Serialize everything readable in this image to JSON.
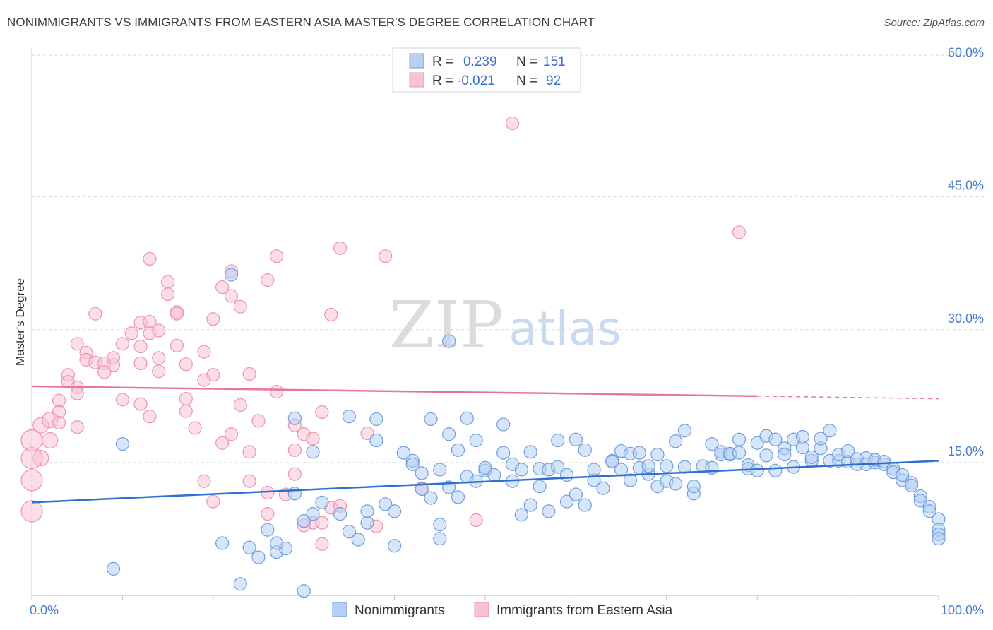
{
  "title": "NONIMMIGRANTS VS IMMIGRANTS FROM EASTERN ASIA MASTER'S DEGREE CORRELATION CHART",
  "source": "Source: ZipAtlas.com",
  "watermark": {
    "zip": "ZIP",
    "atlas": "atlas"
  },
  "colors": {
    "blue_fill": "#b7cff2",
    "blue_stroke": "#6f9ee0",
    "blue_line": "#2f6fd0",
    "pink_fill": "#f7c3d3",
    "pink_stroke": "#ee93ae",
    "pink_line": "#e8769b",
    "grid": "#d9d9d9",
    "axis_text": "#4a7bd0"
  },
  "chart_data": {
    "type": "scatter",
    "title": "NONIMMIGRANTS VS IMMIGRANTS FROM EASTERN ASIA MASTER'S DEGREE CORRELATION CHART",
    "xlabel": "",
    "ylabel": "Master's Degree",
    "xlim": [
      0,
      100
    ],
    "ylim": [
      0,
      61
    ],
    "x_tick_labels": [
      "0.0%",
      "100.0%"
    ],
    "y_ticks": [
      15,
      30,
      45,
      60
    ],
    "y_tick_labels": [
      "15.0%",
      "30.0%",
      "45.0%",
      "60.0%"
    ],
    "grid": "horizontal dashed",
    "legend_top": [
      {
        "r_label": "R =",
        "r_value": "0.239",
        "n_label": "N =",
        "n_value": "151"
      },
      {
        "r_label": "R =",
        "r_value": "-0.021",
        "n_label": "N =",
        "n_value": "92"
      }
    ],
    "legend_bottom": [
      "Nonimmigrants",
      "Immigrants from Eastern Asia"
    ],
    "series": [
      {
        "name": "Nonimmigrants",
        "trend": {
          "x0": 0,
          "y0": 10.5,
          "x1": 100,
          "y1": 15.2
        },
        "points": [
          [
            22,
            36.2
          ],
          [
            46,
            28.7
          ],
          [
            10,
            17.1
          ],
          [
            9,
            3
          ],
          [
            23,
            1.3
          ],
          [
            30,
            0.5
          ],
          [
            21,
            5.9
          ],
          [
            25,
            4.3
          ],
          [
            27,
            4.9
          ],
          [
            28,
            5.3
          ],
          [
            24,
            5.4
          ],
          [
            26,
            7.4
          ],
          [
            27,
            5.9
          ],
          [
            29,
            11.5
          ],
          [
            29,
            20
          ],
          [
            31,
            16.2
          ],
          [
            31,
            9.2
          ],
          [
            30,
            8.4
          ],
          [
            32,
            10.5
          ],
          [
            34,
            9.2
          ],
          [
            35,
            7.2
          ],
          [
            35,
            20.2
          ],
          [
            36,
            6.3
          ],
          [
            37,
            8.2
          ],
          [
            37,
            9.5
          ],
          [
            38,
            17.5
          ],
          [
            38,
            19.9
          ],
          [
            39,
            10.3
          ],
          [
            40,
            9.5
          ],
          [
            40,
            5.6
          ],
          [
            41,
            16.1
          ],
          [
            42,
            15.2
          ],
          [
            42,
            14.8
          ],
          [
            43,
            13.8
          ],
          [
            43,
            12
          ],
          [
            44,
            11
          ],
          [
            44,
            19.9
          ],
          [
            45,
            8
          ],
          [
            45,
            6.4
          ],
          [
            45,
            14.2
          ],
          [
            46,
            12.2
          ],
          [
            46,
            18.2
          ],
          [
            47,
            11.1
          ],
          [
            47,
            16.4
          ],
          [
            48,
            13.4
          ],
          [
            48,
            20
          ],
          [
            49,
            17.5
          ],
          [
            49,
            12.9
          ],
          [
            50,
            14.1
          ],
          [
            50,
            14.4
          ],
          [
            51,
            13.6
          ],
          [
            52,
            16.1
          ],
          [
            52,
            19.3
          ],
          [
            53,
            14.8
          ],
          [
            53,
            12.9
          ],
          [
            54,
            14.2
          ],
          [
            54,
            9.1
          ],
          [
            55,
            10.2
          ],
          [
            55,
            16.2
          ],
          [
            56,
            14.3
          ],
          [
            56,
            12.3
          ],
          [
            57,
            9.5
          ],
          [
            57,
            14.2
          ],
          [
            58,
            17.5
          ],
          [
            58,
            14.5
          ],
          [
            59,
            10.6
          ],
          [
            59,
            13.6
          ],
          [
            60,
            17.6
          ],
          [
            60,
            11.4
          ],
          [
            61,
            16.4
          ],
          [
            61,
            10.2
          ],
          [
            62,
            13
          ],
          [
            62,
            14.2
          ],
          [
            63,
            12.1
          ],
          [
            64,
            15.2
          ],
          [
            64,
            15.1
          ],
          [
            65,
            14.2
          ],
          [
            65,
            16.3
          ],
          [
            66,
            13
          ],
          [
            66,
            16
          ],
          [
            67,
            16.1
          ],
          [
            67,
            14.4
          ],
          [
            68,
            13.7
          ],
          [
            68,
            14.6
          ],
          [
            69,
            12.3
          ],
          [
            69,
            15.9
          ],
          [
            70,
            12.9
          ],
          [
            70,
            14.6
          ],
          [
            71,
            12.6
          ],
          [
            71,
            17.4
          ],
          [
            72,
            14.5
          ],
          [
            72,
            18.6
          ],
          [
            73,
            11.5
          ],
          [
            73,
            12.3
          ],
          [
            74,
            14.6
          ],
          [
            75,
            17.1
          ],
          [
            75,
            14.4
          ],
          [
            76,
            15.9
          ],
          [
            76,
            16.2
          ],
          [
            77,
            15.9
          ],
          [
            77,
            16
          ],
          [
            78,
            16.1
          ],
          [
            78,
            17.6
          ],
          [
            79,
            14.7
          ],
          [
            79,
            14.3
          ],
          [
            80,
            14.1
          ],
          [
            80,
            17.2
          ],
          [
            81,
            18
          ],
          [
            81,
            15.8
          ],
          [
            82,
            14.1
          ],
          [
            82,
            17.6
          ],
          [
            83,
            16.6
          ],
          [
            83,
            15.9
          ],
          [
            84,
            14.5
          ],
          [
            84,
            17.6
          ],
          [
            85,
            17.9
          ],
          [
            85,
            16.7
          ],
          [
            86,
            15.2
          ],
          [
            86,
            15.6
          ],
          [
            87,
            16.6
          ],
          [
            87,
            17.7
          ],
          [
            88,
            15.2
          ],
          [
            88,
            18.6
          ],
          [
            89,
            15.2
          ],
          [
            89,
            15.9
          ],
          [
            90,
            15.1
          ],
          [
            90,
            16.3
          ],
          [
            91,
            14.8
          ],
          [
            91,
            15.4
          ],
          [
            92,
            15.5
          ],
          [
            92,
            14.8
          ],
          [
            93,
            15
          ],
          [
            93,
            15.3
          ],
          [
            94,
            14.8
          ],
          [
            94,
            15.1
          ],
          [
            95,
            14.3
          ],
          [
            95,
            13.9
          ],
          [
            96,
            13
          ],
          [
            96,
            13.6
          ],
          [
            97,
            12.7
          ],
          [
            97,
            12.4
          ],
          [
            98,
            11.2
          ],
          [
            98,
            10.7
          ],
          [
            99,
            10
          ],
          [
            99,
            9.5
          ],
          [
            100,
            8.6
          ],
          [
            100,
            7.4
          ],
          [
            100,
            6.9
          ],
          [
            100,
            6.4
          ]
        ]
      },
      {
        "name": "Immigrants from Eastern Asia",
        "trend": {
          "x0": 0,
          "y0": 23.6,
          "x1": 80,
          "y1": 22.5,
          "dash_to_x": 100,
          "dash_to_y": 22.2
        },
        "points": [
          [
            53,
            53.3
          ],
          [
            78,
            41
          ],
          [
            34,
            39.2
          ],
          [
            39,
            38.3
          ],
          [
            27,
            38.3
          ],
          [
            13,
            38
          ],
          [
            22,
            36.6
          ],
          [
            15,
            35.4
          ],
          [
            26,
            35.6
          ],
          [
            15,
            34
          ],
          [
            21,
            34.8
          ],
          [
            22,
            33.8
          ],
          [
            23,
            32.6
          ],
          [
            33,
            31.7
          ],
          [
            7,
            31.8
          ],
          [
            16,
            32
          ],
          [
            12,
            30.8
          ],
          [
            16,
            31.8
          ],
          [
            20,
            31.2
          ],
          [
            13,
            30.9
          ],
          [
            11,
            29.6
          ],
          [
            13,
            29.6
          ],
          [
            14,
            29.9
          ],
          [
            10,
            28.4
          ],
          [
            12,
            28.1
          ],
          [
            5,
            28.4
          ],
          [
            6,
            27.4
          ],
          [
            16,
            28.2
          ],
          [
            19,
            27.5
          ],
          [
            9,
            26.8
          ],
          [
            14,
            26.8
          ],
          [
            6,
            26.6
          ],
          [
            7,
            26.3
          ],
          [
            8,
            26.2
          ],
          [
            9,
            26
          ],
          [
            12,
            26.2
          ],
          [
            8,
            25.2
          ],
          [
            14,
            25.3
          ],
          [
            17,
            26.1
          ],
          [
            24,
            25
          ],
          [
            20,
            24.9
          ],
          [
            4,
            24.9
          ],
          [
            4,
            24.1
          ],
          [
            5,
            23.5
          ],
          [
            19,
            24.3
          ],
          [
            27,
            23
          ],
          [
            5,
            22.8
          ],
          [
            17,
            22.2
          ],
          [
            10,
            22.1
          ],
          [
            12,
            21.6
          ],
          [
            3,
            22
          ],
          [
            23,
            21.5
          ],
          [
            32,
            20.7
          ],
          [
            13,
            20.2
          ],
          [
            3,
            20.7
          ],
          [
            1,
            19.2
          ],
          [
            2,
            19.8
          ],
          [
            3,
            19.5
          ],
          [
            5,
            19
          ],
          [
            17,
            20.8
          ],
          [
            18,
            18.9
          ],
          [
            25,
            19.7
          ],
          [
            29,
            19.2
          ],
          [
            30,
            18.2
          ],
          [
            31,
            17.7
          ],
          [
            37,
            18.3
          ],
          [
            21,
            17.2
          ],
          [
            22,
            18.2
          ],
          [
            2,
            17.5
          ],
          [
            1,
            15.5
          ],
          [
            24,
            16.2
          ],
          [
            29,
            16.4
          ],
          [
            29,
            13.7
          ],
          [
            19,
            12.9
          ],
          [
            24,
            12.9
          ],
          [
            26,
            11.6
          ],
          [
            28,
            11.4
          ],
          [
            43,
            12.1
          ],
          [
            20,
            10.6
          ],
          [
            26,
            9.2
          ],
          [
            33,
            9.9
          ],
          [
            34,
            10.1
          ],
          [
            31,
            8.2
          ],
          [
            32,
            8.2
          ],
          [
            30,
            7.9
          ],
          [
            38,
            7.8
          ],
          [
            49,
            8.5
          ],
          [
            32,
            5.8
          ],
          [
            0,
            13
          ],
          [
            0,
            9.5
          ],
          [
            0,
            15.5
          ],
          [
            0,
            17.5
          ]
        ]
      }
    ]
  }
}
